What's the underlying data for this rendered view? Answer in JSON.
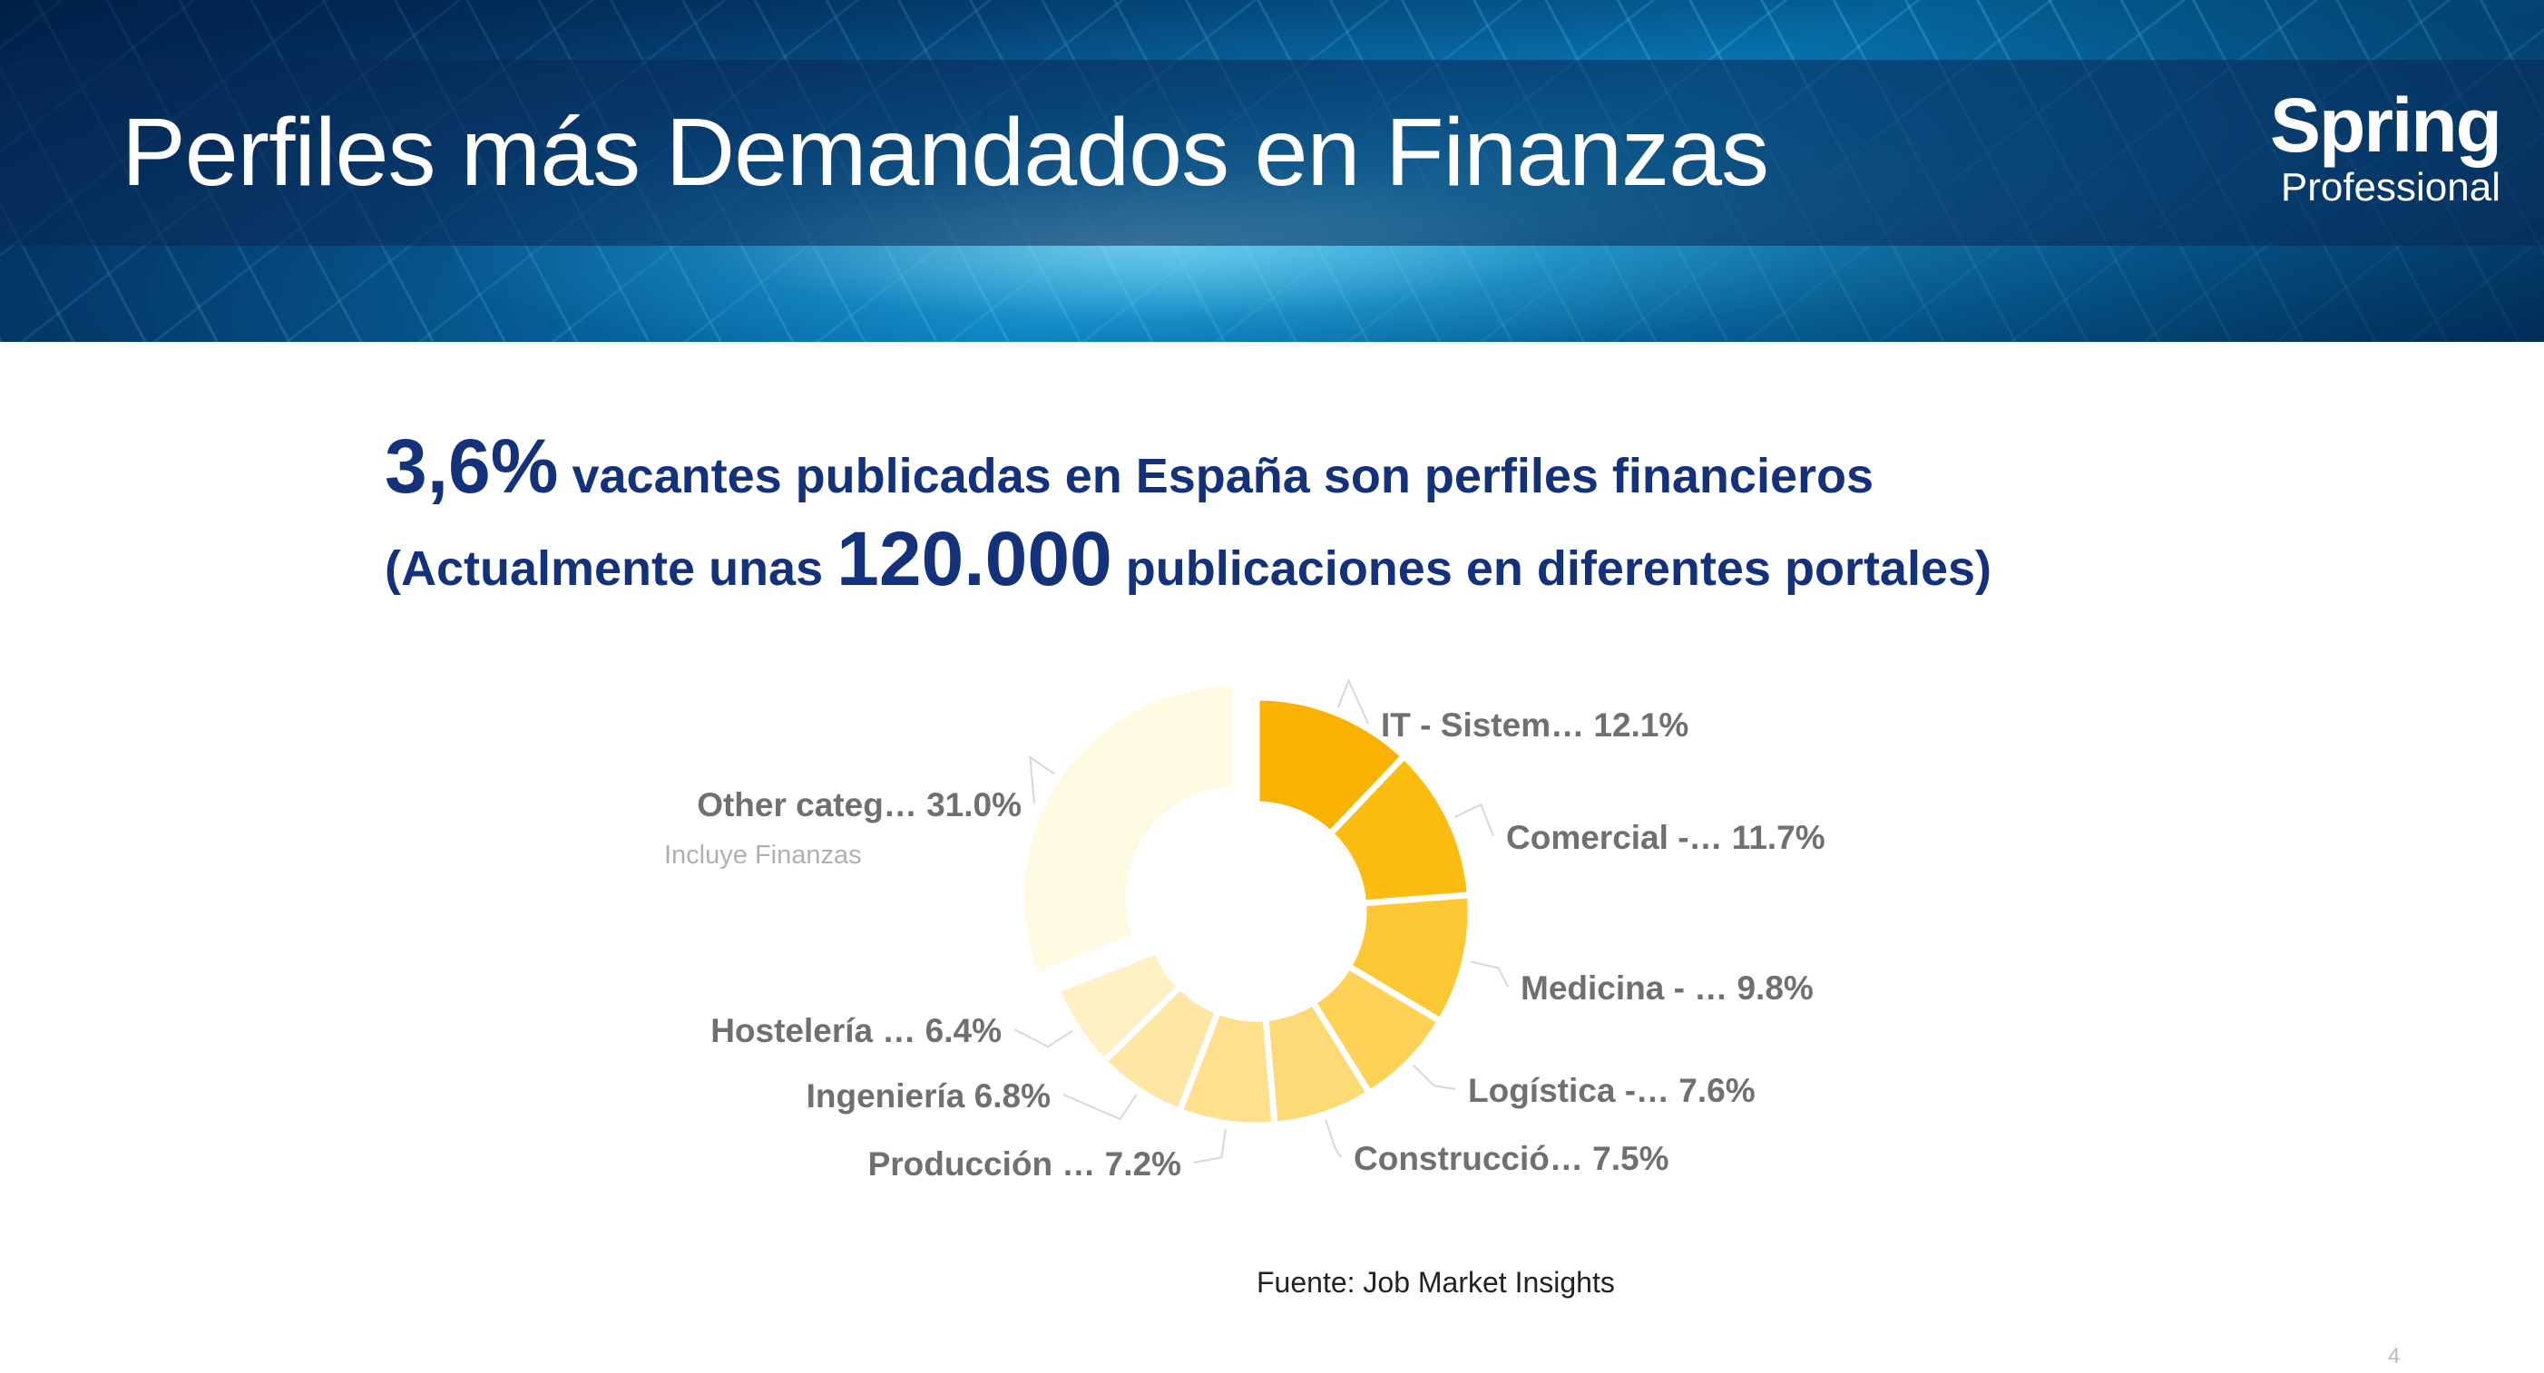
{
  "slide": {
    "title": "Perfiles más Demandados en Finanzas",
    "logo_main": "Spring",
    "logo_sub": "Professional",
    "headline_line1_big": "3,6%",
    "headline_line1_rest": " vacantes publicadas en España son perfiles financieros",
    "headline_line2_pre": "(Actualmente unas ",
    "headline_line2_big": "120.000",
    "headline_line2_post": " publicaciones en diferentes portales)",
    "source": "Fuente: Job Market Insights",
    "page_number": "4"
  },
  "colors": {
    "headline": "#14327c",
    "label": "#707070",
    "sublabel": "#b0b0b0"
  },
  "chart_data": {
    "type": "pie",
    "donut": true,
    "categories": [
      "IT - Sistem…",
      "Comercial -…",
      "Medicina - …",
      "Logística -…",
      "Construcció…",
      "Producción …",
      "Ingeniería",
      "Hostelería …",
      "Other categ…"
    ],
    "values": [
      12.1,
      11.7,
      9.8,
      7.6,
      7.5,
      7.2,
      6.8,
      6.4,
      31.0
    ],
    "labels": [
      "IT - Sistem… 12.1%",
      "Comercial -… 11.7%",
      "Medicina - … 9.8%",
      "Logística -… 7.6%",
      "Construcció… 7.5%",
      "Producción … 7.2%",
      "Ingeniería 6.8%",
      "Hostelería … 6.4%",
      "Other categ… 31.0%"
    ],
    "colors": [
      "#f9b200",
      "#fbbe10",
      "#fcc935",
      "#fdd256",
      "#fdda75",
      "#fee08d",
      "#fee7a5",
      "#fff0c6",
      "#fffbe3"
    ],
    "annotations": [
      {
        "category": "Other categ…",
        "text": "Incluye Finanzas"
      }
    ]
  }
}
